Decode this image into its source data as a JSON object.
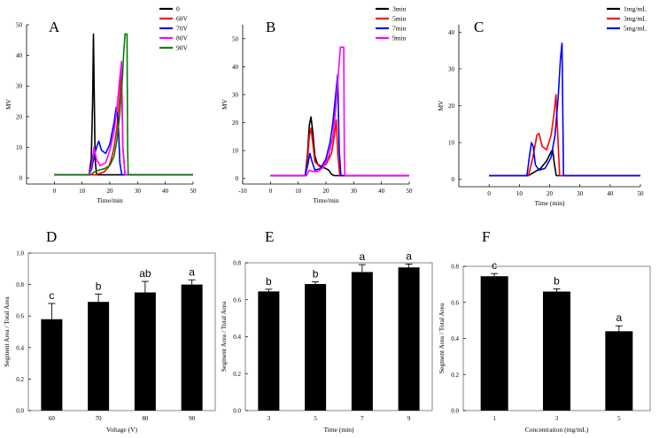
{
  "chart_data": [
    {
      "panel": "A",
      "type": "line",
      "xlabel": "Time/min",
      "ylabel": "MV",
      "xlim": [
        -10,
        50
      ],
      "ylim": [
        -2,
        50
      ],
      "xticks": [
        0,
        10,
        20,
        30,
        40,
        50
      ],
      "yticks": [
        0,
        10,
        20,
        30,
        40,
        50
      ],
      "legend_position": "top-right",
      "series": [
        {
          "name": "0",
          "color": "#000000",
          "x": [
            0,
            12.5,
            13.3,
            13.8,
            14.1,
            14.4,
            14.7,
            15.2,
            16,
            50
          ],
          "y": [
            1,
            1,
            6,
            25,
            47,
            25,
            6,
            1,
            1,
            1
          ]
        },
        {
          "name": "60V",
          "color": "#ff0000",
          "x": [
            0,
            15,
            16.5,
            18,
            19.5,
            20.5,
            21.5,
            22.5,
            23.5,
            24.2,
            24.7,
            25.5,
            50
          ],
          "y": [
            1,
            1,
            1.5,
            2,
            3.5,
            6,
            10,
            16,
            26,
            35,
            10,
            1,
            1
          ]
        },
        {
          "name": "70V",
          "color": "#0000ff",
          "x": [
            0,
            12.5,
            13.5,
            14.3,
            15.2,
            16,
            17,
            18.5,
            20,
            21.5,
            22.3,
            23,
            23.6,
            24.3,
            50
          ],
          "y": [
            1,
            1,
            3,
            7,
            10,
            12,
            9,
            8,
            11,
            18,
            23,
            19,
            5,
            1,
            1
          ]
        },
        {
          "name": "80V",
          "color": "#ff00ff",
          "x": [
            0,
            12.5,
            13.5,
            14.3,
            15.2,
            16.5,
            18.5,
            20,
            21.5,
            22.5,
            23.5,
            24.2,
            24.7,
            25.5,
            50
          ],
          "y": [
            1,
            1,
            4,
            10,
            6,
            4,
            5,
            9,
            15,
            22,
            32,
            38,
            10,
            1,
            1
          ]
        },
        {
          "name": "90V",
          "color": "#008000",
          "x": [
            0,
            13,
            14.5,
            16,
            18,
            20,
            21.5,
            22.5,
            23.5,
            24.5,
            25,
            25.5,
            26.2,
            26.4,
            26.6,
            50
          ],
          "y": [
            1,
            1,
            2,
            2.5,
            3,
            4,
            7,
            12,
            20,
            32,
            41,
            47,
            47,
            10,
            1,
            1
          ]
        }
      ]
    },
    {
      "panel": "B",
      "type": "line",
      "xlabel": "Time/min",
      "ylabel": "MV",
      "xlim": [
        -10,
        50
      ],
      "ylim": [
        -2,
        55
      ],
      "xticks": [
        -10,
        0,
        10,
        20,
        30,
        40,
        50
      ],
      "yticks": [
        0,
        10,
        20,
        30,
        40,
        50
      ],
      "legend_position": "top-right",
      "series": [
        {
          "name": "3min",
          "color": "#000000",
          "x": [
            0,
            12.5,
            13.3,
            14,
            14.6,
            15.2,
            16,
            17,
            19,
            21,
            22,
            23,
            50
          ],
          "y": [
            1,
            1,
            8,
            19,
            22,
            17,
            8,
            5,
            4,
            3,
            1.5,
            1,
            1
          ]
        },
        {
          "name": "5min",
          "color": "#ff0000",
          "x": [
            0,
            12.5,
            13.3,
            14,
            14.6,
            15.2,
            16,
            18,
            20,
            22,
            23,
            23.7,
            24.3,
            25,
            50
          ],
          "y": [
            1,
            1,
            6,
            15,
            18,
            13,
            6,
            4,
            5,
            9,
            15,
            21,
            8,
            1,
            1
          ]
        },
        {
          "name": "7min",
          "color": "#0000ff",
          "x": [
            0,
            12.5,
            13.5,
            14.2,
            15,
            16,
            18,
            20,
            21.5,
            22.5,
            23.5,
            24.2,
            24.8,
            25.4,
            50
          ],
          "y": [
            1,
            1,
            5,
            9,
            6,
            3,
            3.5,
            7,
            13,
            20,
            30,
            37,
            10,
            1,
            1
          ]
        },
        {
          "name": "9min",
          "color": "#ff00ff",
          "x": [
            0,
            13,
            14,
            15,
            17,
            19,
            21,
            22.5,
            23.5,
            24.5,
            25.2,
            26.4,
            26.6,
            26.8,
            50
          ],
          "y": [
            1,
            1,
            3,
            2.5,
            2.5,
            4,
            8,
            15,
            25,
            38,
            47,
            47,
            10,
            1,
            1
          ]
        }
      ]
    },
    {
      "panel": "C",
      "type": "line",
      "xlabel": "Time (min)",
      "ylabel": "MV",
      "xlim": [
        -10,
        50
      ],
      "ylim": [
        -2,
        42
      ],
      "xticks": [
        0,
        10,
        20,
        30,
        40,
        50
      ],
      "yticks": [
        0,
        10,
        20,
        30,
        40
      ],
      "legend_position": "top-right",
      "series": [
        {
          "name": "1mg/mL",
          "color": "#000000",
          "x": [
            0,
            13,
            14,
            15,
            17,
            19,
            20.5,
            21,
            21.6,
            22.2,
            50
          ],
          "y": [
            1,
            1,
            1.5,
            2,
            3,
            5,
            7.5,
            8,
            4,
            1,
            1
          ]
        },
        {
          "name": "3mg/mL",
          "color": "#ff0000",
          "x": [
            0,
            13,
            14.5,
            15.8,
            16.5,
            17.5,
            19,
            20.5,
            21.5,
            22.1,
            22.7,
            23.3,
            50
          ],
          "y": [
            1,
            1,
            6,
            12,
            12.5,
            9,
            8,
            12,
            18,
            23,
            12,
            1,
            1
          ]
        },
        {
          "name": "5mg/mL",
          "color": "#0000ff",
          "x": [
            0,
            12.5,
            13.3,
            14,
            14.6,
            15.3,
            16.5,
            18.5,
            20.5,
            21.8,
            22.8,
            23.6,
            24.1,
            24.6,
            50
          ],
          "y": [
            1,
            1,
            6,
            10,
            9,
            4,
            2.5,
            3,
            6,
            12,
            22,
            33,
            37,
            1,
            1
          ]
        }
      ]
    },
    {
      "panel": "D",
      "type": "bar",
      "xlabel": "Voltage (V)",
      "ylabel": "Segment Area / Total Area",
      "ylim": [
        0,
        1.0
      ],
      "yticks": [
        "0.0",
        "0.2",
        "0.4",
        "0.6",
        "0.8",
        "1.0"
      ],
      "categories": [
        "60",
        "70",
        "80",
        "90"
      ],
      "values": [
        0.58,
        0.69,
        0.75,
        0.8
      ],
      "errors": [
        0.1,
        0.05,
        0.07,
        0.03
      ],
      "labels": [
        "c",
        "b",
        "ab",
        "a"
      ]
    },
    {
      "panel": "E",
      "type": "bar",
      "xlabel": "Time (min)",
      "ylabel": "Segment Area / Total Area",
      "ylim": [
        0,
        0.8
      ],
      "yticks": [
        "0.0",
        "0.2",
        "0.4",
        "0.6",
        "0.8"
      ],
      "categories": [
        "3",
        "5",
        "7",
        "9"
      ],
      "values": [
        0.645,
        0.685,
        0.75,
        0.775
      ],
      "errors": [
        0.012,
        0.012,
        0.04,
        0.018
      ],
      "labels": [
        "b",
        "b",
        "a",
        "a"
      ]
    },
    {
      "panel": "F",
      "type": "bar",
      "xlabel": "Concentration (mg/mL)",
      "ylabel": "Segment Area / Total Area",
      "ylim": [
        0,
        0.8
      ],
      "yticks": [
        "0.0",
        "0.2",
        "0.4",
        "0.6",
        "0.8"
      ],
      "categories": [
        "1",
        "3",
        "5"
      ],
      "values": [
        0.745,
        0.66,
        0.44
      ],
      "errors": [
        0.015,
        0.015,
        0.03
      ],
      "labels": [
        "c",
        "b",
        "a"
      ]
    }
  ]
}
